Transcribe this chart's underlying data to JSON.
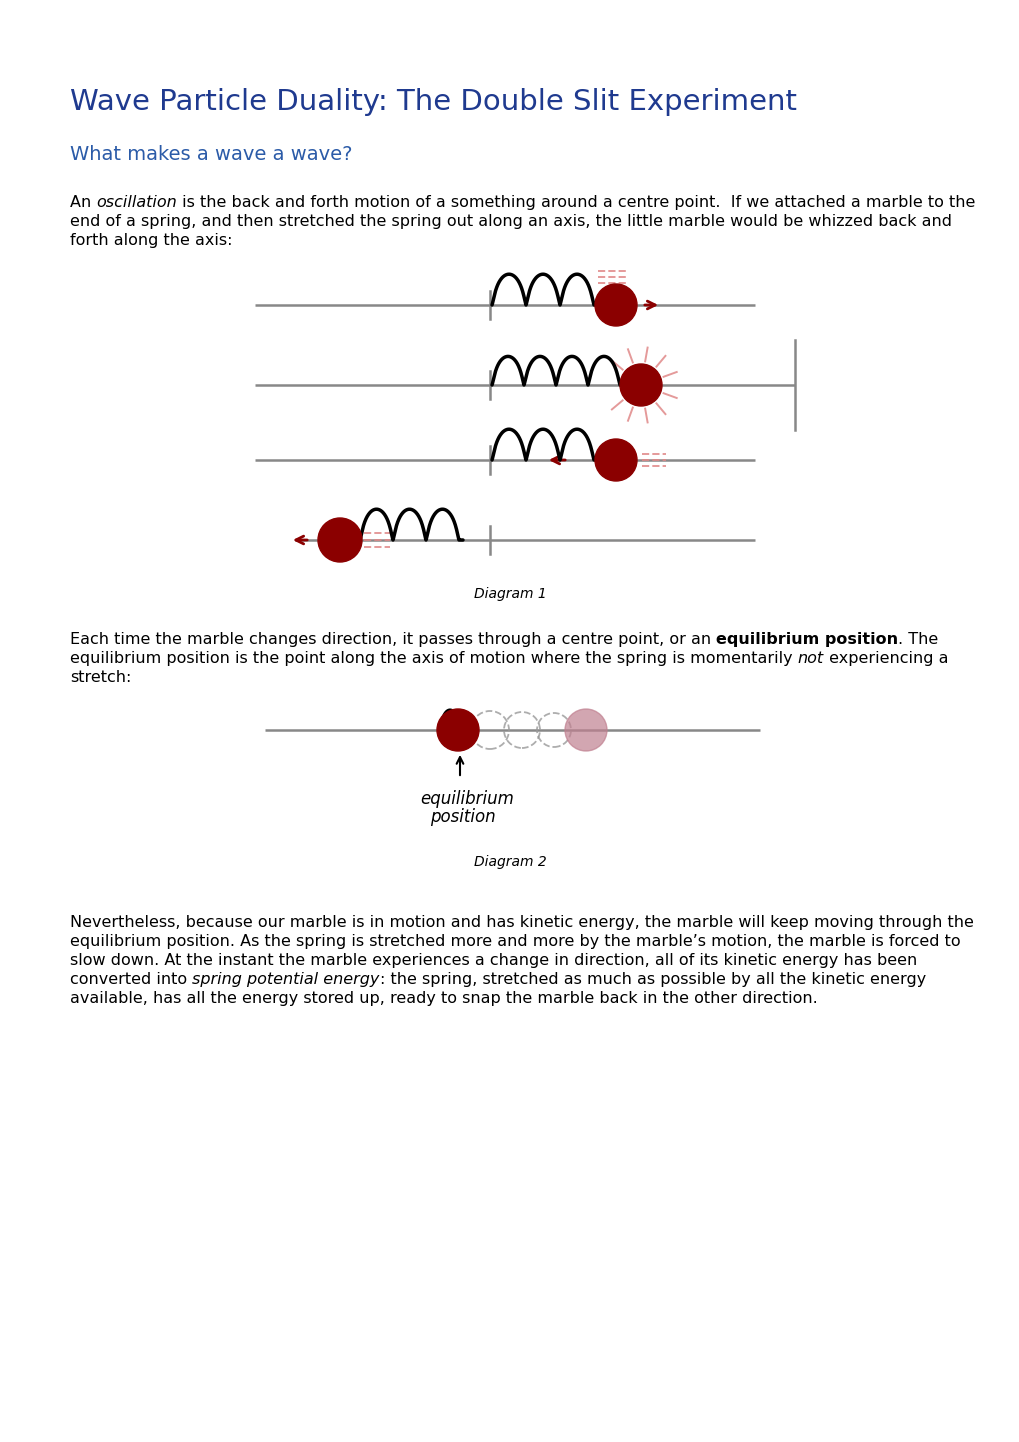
{
  "title": "Wave Particle Duality: The Double Slit Experiment",
  "title_color": "#1F3A8F",
  "subtitle": "What makes a wave a wave?",
  "subtitle_color": "#2B5BA8",
  "bg_color": "#FFFFFF",
  "diagram1_label": "Diagram 1",
  "diagram2_label": "Diagram 2",
  "marble_color": "#8B0000",
  "ghost_marble_color": "#C08090",
  "motion_line_color": "#E08888",
  "axis_color": "#888888",
  "spring_color": "#111111"
}
